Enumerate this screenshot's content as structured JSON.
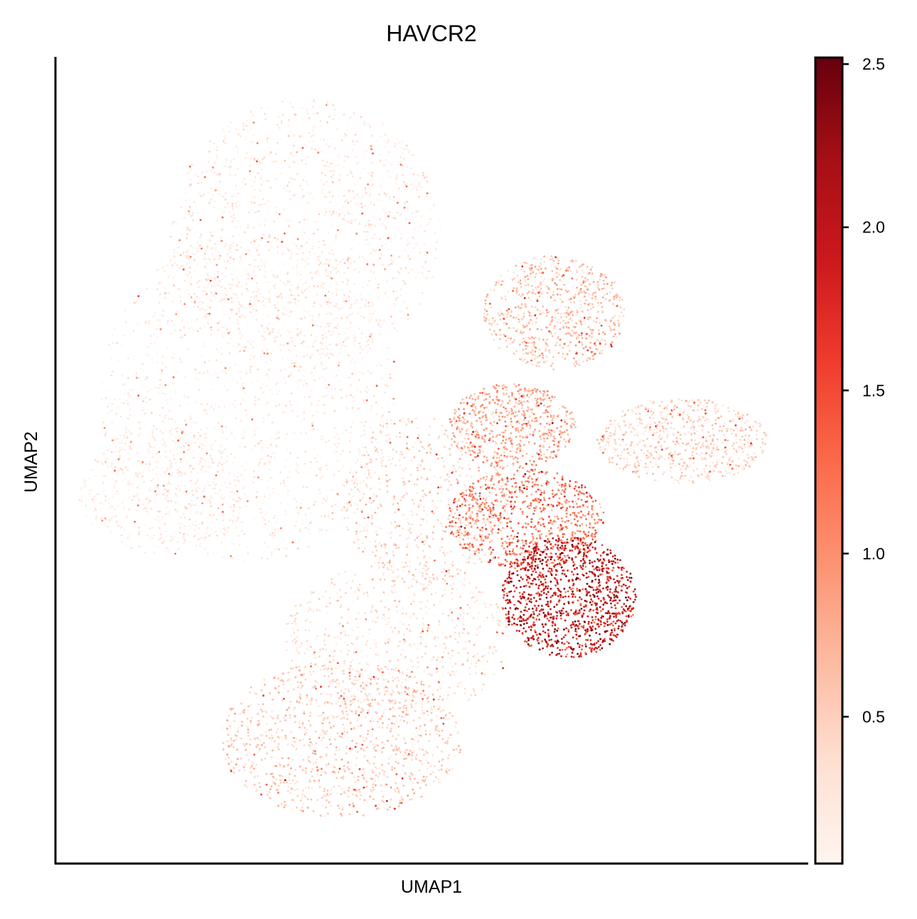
{
  "chart_data": {
    "type": "scatter",
    "title": "HAVCR2",
    "xlabel": "UMAP1",
    "ylabel": "UMAP2",
    "x_ticks_shown": false,
    "y_ticks_shown": false,
    "grid": false,
    "colormap": "Reds",
    "colorbar": {
      "range": [
        0.05,
        2.52
      ],
      "ticks": [
        0.5,
        1.0,
        1.5,
        2.0,
        2.5
      ],
      "tick_labels": [
        "0.5",
        "1.0",
        "1.5",
        "2.0",
        "2.5"
      ],
      "colors": [
        "#fff5f0",
        "#fee0d2",
        "#fcbba1",
        "#fc9272",
        "#fb6a4a",
        "#ef3b2c",
        "#cb181d",
        "#a50f15",
        "#67000d"
      ]
    },
    "note_regions": [
      {
        "region": "left-upper lobe",
        "expression": "low"
      },
      {
        "region": "lower-left lobe",
        "expression": "low-moderate"
      },
      {
        "region": "center-right cluster",
        "expression": "moderate"
      },
      {
        "region": "right cluster",
        "expression": "high"
      },
      {
        "region": "far-right arm",
        "expression": "low-moderate"
      }
    ]
  }
}
